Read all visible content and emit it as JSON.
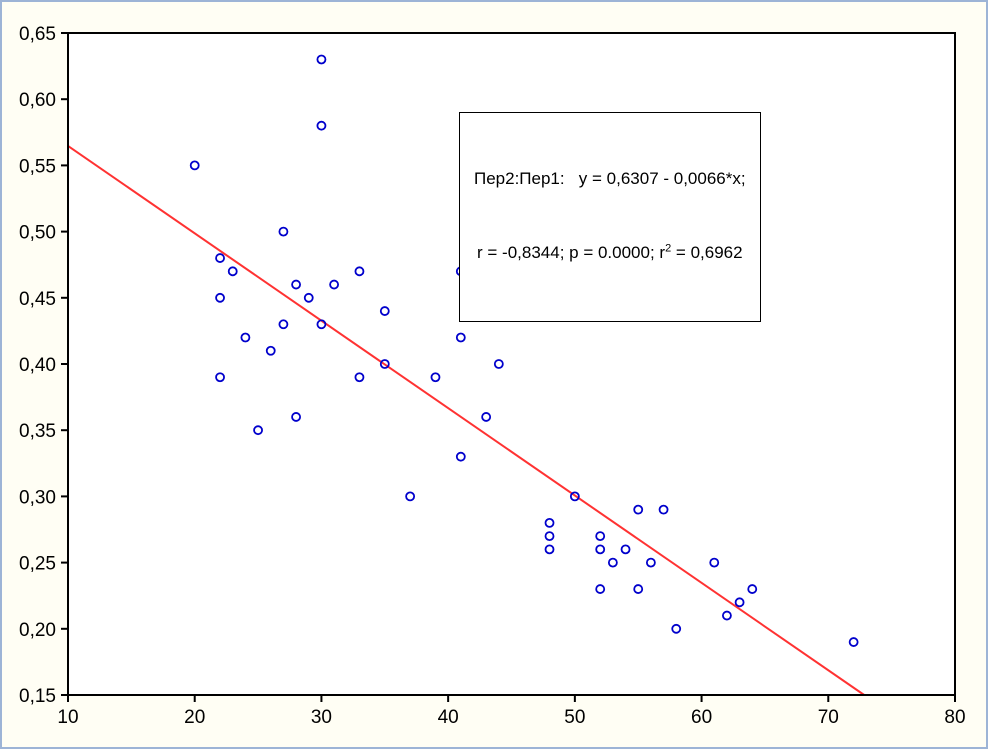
{
  "annotation": {
    "line1": "Пер2:Пер1:   y = 0,6307 - 0,0066*x;",
    "line2_pre": "r = -0,8344; p = 0.0000; r",
    "line2_sup": "2",
    "line2_post": " = 0,6962"
  },
  "chart_data": {
    "type": "scatter",
    "title": "",
    "xlabel": "",
    "ylabel": "",
    "xlim": [
      10,
      80
    ],
    "ylim": [
      0.15,
      0.65
    ],
    "grid": false,
    "legend": false,
    "x_ticks": [
      {
        "v": 10,
        "label": "10"
      },
      {
        "v": 20,
        "label": "20"
      },
      {
        "v": 30,
        "label": "30"
      },
      {
        "v": 40,
        "label": "40"
      },
      {
        "v": 50,
        "label": "50"
      },
      {
        "v": 60,
        "label": "60"
      },
      {
        "v": 70,
        "label": "70"
      },
      {
        "v": 80,
        "label": "80"
      }
    ],
    "y_ticks": [
      {
        "v": 0.15,
        "label": "0,15"
      },
      {
        "v": 0.2,
        "label": "0,20"
      },
      {
        "v": 0.25,
        "label": "0,25"
      },
      {
        "v": 0.3,
        "label": "0,30"
      },
      {
        "v": 0.35,
        "label": "0,35"
      },
      {
        "v": 0.4,
        "label": "0,40"
      },
      {
        "v": 0.45,
        "label": "0,45"
      },
      {
        "v": 0.5,
        "label": "0,50"
      },
      {
        "v": 0.55,
        "label": "0,55"
      },
      {
        "v": 0.6,
        "label": "0,60"
      },
      {
        "v": 0.65,
        "label": "0,65"
      }
    ],
    "series": [
      {
        "name": "Пер2 vs Пер1",
        "marker": "open-circle",
        "color": "#0000cc",
        "points": [
          [
            30,
            0.63
          ],
          [
            30,
            0.58
          ],
          [
            20,
            0.55
          ],
          [
            27,
            0.5
          ],
          [
            22,
            0.48
          ],
          [
            23,
            0.47
          ],
          [
            33,
            0.47
          ],
          [
            41,
            0.47
          ],
          [
            28,
            0.46
          ],
          [
            31,
            0.46
          ],
          [
            22,
            0.45
          ],
          [
            29,
            0.45
          ],
          [
            35,
            0.44
          ],
          [
            45,
            0.44
          ],
          [
            27,
            0.43
          ],
          [
            30,
            0.43
          ],
          [
            24,
            0.42
          ],
          [
            41,
            0.42
          ],
          [
            26,
            0.41
          ],
          [
            35,
            0.4
          ],
          [
            44,
            0.4
          ],
          [
            22,
            0.39
          ],
          [
            33,
            0.39
          ],
          [
            39,
            0.39
          ],
          [
            28,
            0.36
          ],
          [
            43,
            0.36
          ],
          [
            25,
            0.35
          ],
          [
            41,
            0.33
          ],
          [
            37,
            0.3
          ],
          [
            50,
            0.3
          ],
          [
            55,
            0.29
          ],
          [
            57,
            0.29
          ],
          [
            48,
            0.28
          ],
          [
            48,
            0.27
          ],
          [
            52,
            0.27
          ],
          [
            48,
            0.26
          ],
          [
            52,
            0.26
          ],
          [
            54,
            0.26
          ],
          [
            53,
            0.25
          ],
          [
            56,
            0.25
          ],
          [
            61,
            0.25
          ],
          [
            52,
            0.23
          ],
          [
            55,
            0.23
          ],
          [
            64,
            0.23
          ],
          [
            63,
            0.22
          ],
          [
            62,
            0.21
          ],
          [
            58,
            0.2
          ],
          [
            72,
            0.19
          ]
        ]
      }
    ],
    "regression": {
      "intercept": 0.6307,
      "slope": -0.0066,
      "color": "#ff3232",
      "equation": "y = 0,6307 - 0,0066*x",
      "r": -0.8344,
      "p": 0.0,
      "r2": 0.6962
    }
  }
}
